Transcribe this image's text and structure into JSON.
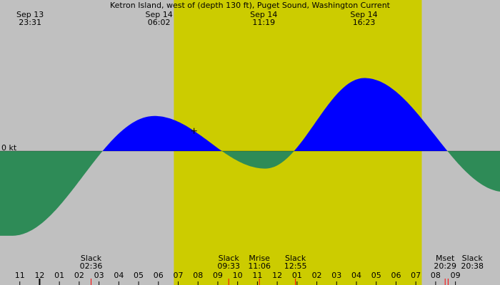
{
  "title": "Ketron Island, west of (depth 130 ft), Puget Sound, Washington Current",
  "colors": {
    "night": "#c0c0c0",
    "day": "#cccc00",
    "flood": "#0000ff",
    "ebb": "#2e8b57",
    "tick_major": "#000000",
    "tick_event": "#ff0000"
  },
  "chart_data": {
    "type": "area",
    "title": "Ketron Island, west of (depth 130 ft), Puget Sound, Washington Current",
    "ylabel": "0 kt",
    "x_unit": "hours, Sep 13 22:00 to Sep 14 23:00 local",
    "x_range": [
      -2.0,
      23.25
    ],
    "y_range_kt": [
      -1.55,
      1.4
    ],
    "daylight": {
      "sunrise_hour": 6.78,
      "sunset_hour": 19.3
    },
    "current_extrema": [
      {
        "hour": -1.4,
        "speed_kt": -1.45
      },
      {
        "hour": 5.8,
        "speed_kt": 0.6
      },
      {
        "hour": 11.4,
        "speed_kt": -0.3
      },
      {
        "hour": 16.4,
        "speed_kt": 1.25
      },
      {
        "hour": 23.5,
        "speed_kt": -0.7
      }
    ],
    "slack_hours": [
      2.6,
      9.55,
      12.92,
      20.63
    ],
    "top_labels": [
      {
        "date": "Sep 13",
        "time": "23:31",
        "hour": -0.48
      },
      {
        "date": "Sep 14",
        "time": "06:02",
        "hour": 6.03
      },
      {
        "date": "Sep 14",
        "time": "11:19",
        "hour": 11.32
      },
      {
        "date": "Sep 14",
        "time": "16:23",
        "hour": 16.38
      }
    ],
    "events": [
      {
        "label": "Slack",
        "time": "02:36",
        "hour": 2.6
      },
      {
        "label": "Slack",
        "time": "09:33",
        "hour": 9.55
      },
      {
        "label": "Mrise",
        "time": "11:06",
        "hour": 11.1
      },
      {
        "label": "Slack",
        "time": "12:55",
        "hour": 12.92
      },
      {
        "label": "Mset",
        "time": "20:29",
        "hour": 20.48
      },
      {
        "label": "Slack",
        "time": "20:38",
        "hour": 20.63
      }
    ],
    "hour_ticks": [
      "11",
      "12",
      "01",
      "02",
      "03",
      "04",
      "05",
      "06",
      "07",
      "08",
      "09",
      "10",
      "11",
      "12",
      "01",
      "02",
      "03",
      "04",
      "05",
      "06",
      "07",
      "08",
      "09"
    ],
    "hour_tick_start": -1,
    "marker_hour": 7.8
  }
}
